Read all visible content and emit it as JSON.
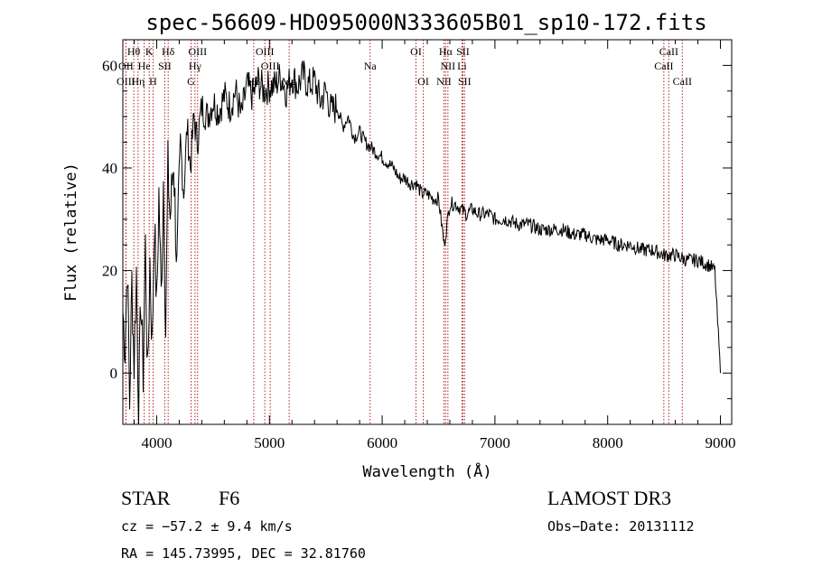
{
  "chart_data": {
    "type": "line",
    "title": "spec-56609-HD095000N333605B01_sp10-172.fits",
    "xlabel": "Wavelength (Å)",
    "ylabel": "Flux (relative)",
    "xlim": [
      3700,
      9100
    ],
    "ylim": [
      -10,
      65
    ],
    "xticks": [
      4000,
      5000,
      6000,
      7000,
      8000,
      9000
    ],
    "yticks": [
      0,
      20,
      40,
      60
    ],
    "series": [
      {
        "name": "flux",
        "x": [
          3700,
          3720,
          3740,
          3760,
          3780,
          3800,
          3820,
          3840,
          3860,
          3880,
          3900,
          3920,
          3940,
          3960,
          3980,
          4000,
          4020,
          4040,
          4060,
          4080,
          4100,
          4120,
          4150,
          4180,
          4210,
          4240,
          4270,
          4300,
          4330,
          4360,
          4400,
          4450,
          4500,
          4550,
          4600,
          4650,
          4700,
          4750,
          4800,
          4850,
          4900,
          4950,
          5000,
          5050,
          5100,
          5150,
          5200,
          5250,
          5300,
          5350,
          5400,
          5450,
          5500,
          5550,
          5600,
          5650,
          5700,
          5750,
          5800,
          5850,
          5900,
          5950,
          6000,
          6050,
          6100,
          6150,
          6200,
          6250,
          6300,
          6350,
          6400,
          6450,
          6500,
          6550,
          6600,
          6650,
          6700,
          6750,
          6800,
          6850,
          6900,
          6950,
          7000,
          7100,
          7200,
          7300,
          7400,
          7500,
          7600,
          7700,
          7800,
          7900,
          8000,
          8100,
          8200,
          8300,
          8400,
          8500,
          8600,
          8700,
          8800,
          8900,
          8950,
          9000
        ],
        "values": [
          12,
          5,
          22,
          -6,
          18,
          2,
          20,
          -8,
          15,
          0,
          25,
          -2,
          22,
          5,
          30,
          12,
          35,
          15,
          38,
          8,
          40,
          30,
          42,
          20,
          45,
          35,
          48,
          40,
          50,
          45,
          52,
          50,
          53,
          51,
          54,
          52,
          55,
          50,
          56,
          54,
          57,
          55,
          56,
          56,
          58,
          55,
          58,
          56,
          58,
          56,
          57,
          53,
          55,
          51,
          52,
          48,
          50,
          46,
          47,
          45,
          44,
          43,
          42,
          41,
          40,
          38,
          38,
          37,
          37,
          35,
          35,
          34,
          34,
          25,
          33,
          33,
          32,
          31,
          32,
          31,
          31,
          31,
          30,
          30,
          29,
          29,
          28,
          28,
          28,
          27,
          27,
          26,
          26,
          25,
          25,
          24,
          24,
          23,
          23,
          22,
          22,
          21,
          20,
          0
        ]
      }
    ],
    "spectral_lines": [
      {
        "label": "Hθ",
        "wavelength": 3797,
        "row": 0
      },
      {
        "label": "K",
        "wavelength": 3934,
        "row": 0
      },
      {
        "label": "Hδ",
        "wavelength": 4102,
        "row": 0
      },
      {
        "label": "OIII",
        "wavelength": 4363,
        "row": 0
      },
      {
        "label": "OIII",
        "wavelength": 4959,
        "row": 0
      },
      {
        "label": "OI",
        "wavelength": 6300,
        "row": 0
      },
      {
        "label": "Hα",
        "wavelength": 6563,
        "row": 0
      },
      {
        "label": "SII",
        "wavelength": 6716,
        "row": 0
      },
      {
        "label": "CaII",
        "wavelength": 8542,
        "row": 0
      },
      {
        "label": "OII",
        "wavelength": 3727,
        "row": 1
      },
      {
        "label": "He",
        "wavelength": 3889,
        "row": 1
      },
      {
        "label": "SII",
        "wavelength": 4072,
        "row": 1
      },
      {
        "label": "Hγ",
        "wavelength": 4340,
        "row": 1
      },
      {
        "label": "OIII",
        "wavelength": 5007,
        "row": 1
      },
      {
        "label": "Na",
        "wavelength": 5893,
        "row": 1
      },
      {
        "label": "NII",
        "wavelength": 6583,
        "row": 1
      },
      {
        "label": "Li",
        "wavelength": 6708,
        "row": 1
      },
      {
        "label": "CaII",
        "wavelength": 8498,
        "row": 1
      },
      {
        "label": "OIII",
        "wavelength": 3727,
        "row": 2
      },
      {
        "label": "Hη",
        "wavelength": 3835,
        "row": 2
      },
      {
        "label": "H",
        "wavelength": 3968,
        "row": 2
      },
      {
        "label": "G",
        "wavelength": 4305,
        "row": 2
      },
      {
        "label": "Hβ",
        "wavelength": 4861,
        "row": 2
      },
      {
        "label": "Mg",
        "wavelength": 5175,
        "row": 2
      },
      {
        "label": "OI",
        "wavelength": 6364,
        "row": 2
      },
      {
        "label": "NII",
        "wavelength": 6548,
        "row": 2
      },
      {
        "label": "SII",
        "wavelength": 6731,
        "row": 2
      },
      {
        "label": "CaII",
        "wavelength": 8662,
        "row": 2
      }
    ]
  },
  "info": {
    "object_class": "STAR",
    "subclass": "F6",
    "survey": "LAMOST DR3",
    "cz": "cz = −57.2 ± 9.4 km/s",
    "obs_date": "Obs−Date: 20131112",
    "coords": "RA = 145.73995, DEC =  32.81760"
  }
}
